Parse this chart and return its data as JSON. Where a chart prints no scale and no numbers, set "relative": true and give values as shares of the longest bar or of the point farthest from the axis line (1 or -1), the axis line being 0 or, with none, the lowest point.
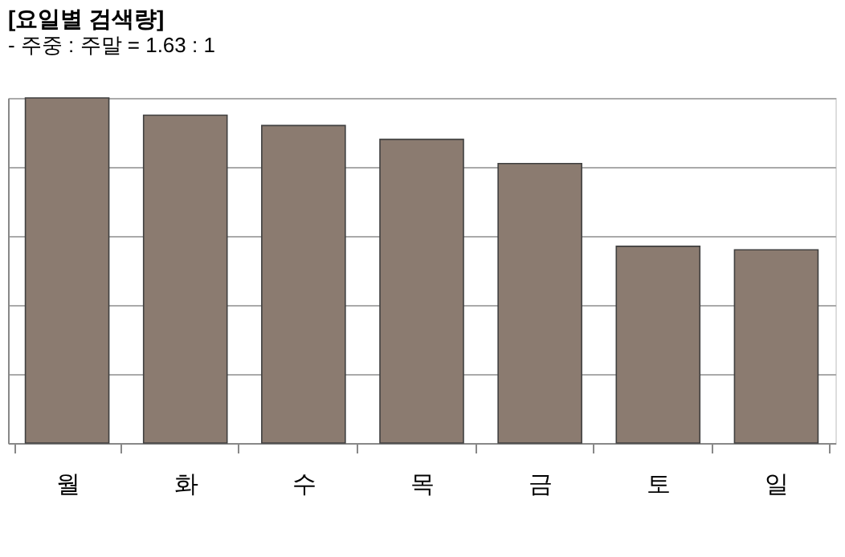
{
  "chart_data": {
    "type": "bar",
    "title": "[요일별 검색량]",
    "subtitle": " - 주중 : 주말 = 1.63 : 1",
    "categories": [
      "월",
      "화",
      "수",
      "목",
      "금",
      "토",
      "일"
    ],
    "values": [
      1,
      0.95,
      0.92,
      0.88,
      0.81,
      0.57,
      0.56
    ],
    "color": "#8b7b70",
    "relative": true,
    "grid": "y"
  }
}
